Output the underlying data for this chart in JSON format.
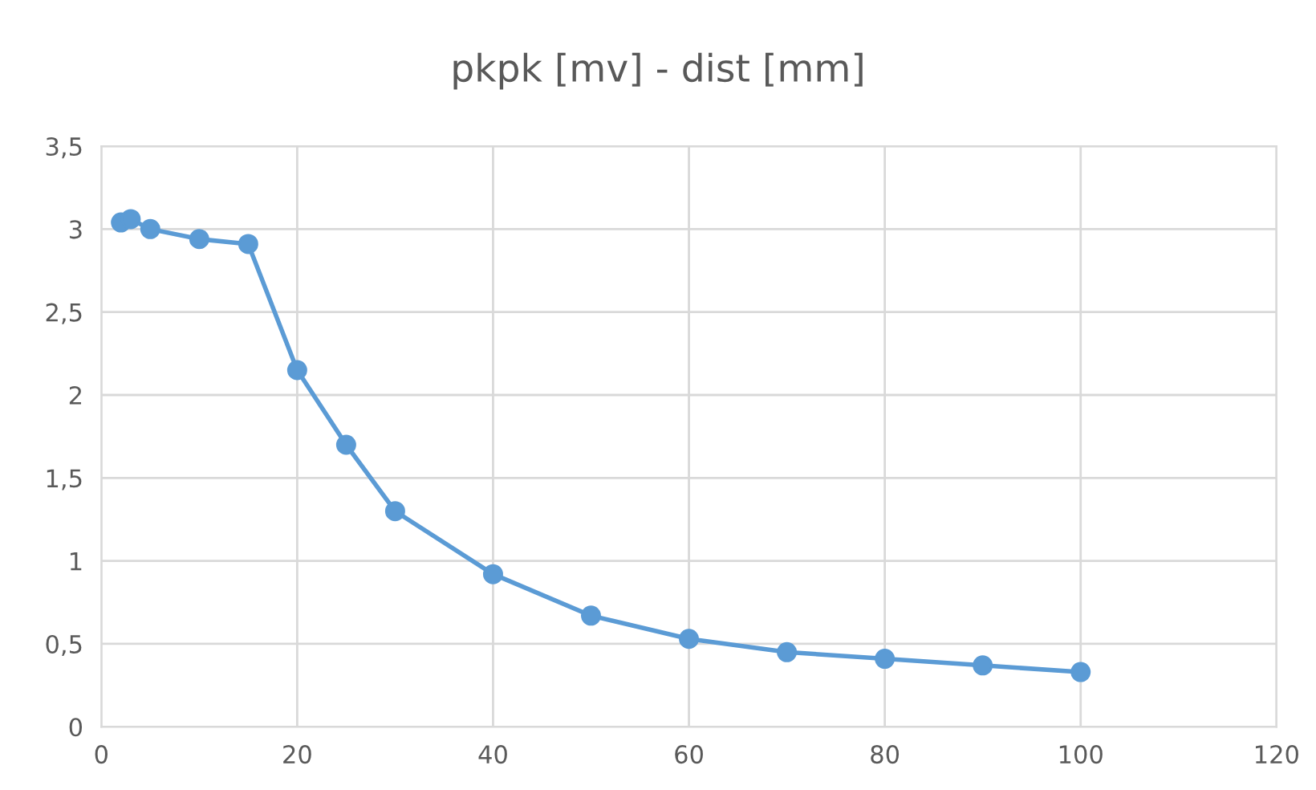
{
  "chart_data": {
    "type": "line",
    "title": "pkpk [mv] - dist [mm]",
    "x": [
      2,
      3,
      5,
      10,
      15,
      20,
      25,
      30,
      40,
      50,
      60,
      70,
      80,
      90,
      100
    ],
    "series": [
      {
        "color": "#5b9bd5",
        "values": [
          3.04,
          3.06,
          3.0,
          2.94,
          2.91,
          2.15,
          1.7,
          1.3,
          0.92,
          0.67,
          0.53,
          0.45,
          0.41,
          0.37,
          0.33
        ]
      }
    ],
    "xlim": [
      0,
      120
    ],
    "xticks": [
      0,
      20,
      40,
      60,
      80,
      100,
      120
    ],
    "ylim": [
      0,
      3.5
    ],
    "yticks": [
      0,
      {
        "value": 0.5,
        "label": "0,5"
      },
      1,
      {
        "value": 1.5,
        "label": "1,5"
      },
      2,
      {
        "value": 2.5,
        "label": "2,5"
      },
      3,
      {
        "value": 3.5,
        "label": "3,5"
      }
    ],
    "grid": true,
    "marker": "circle",
    "line_style": "solid",
    "legend": false
  }
}
